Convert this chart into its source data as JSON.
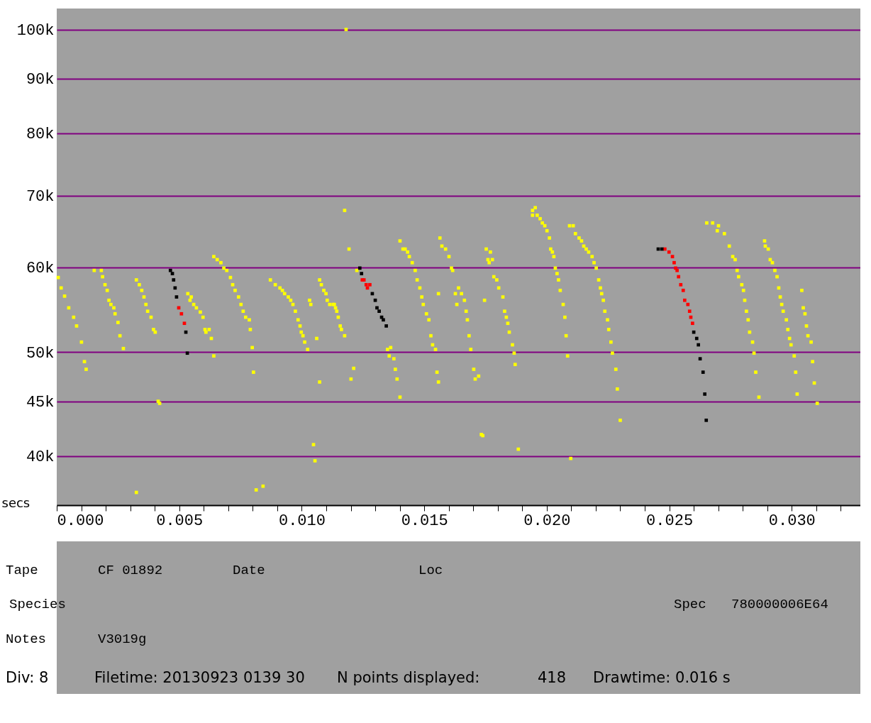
{
  "chart_data": {
    "type": "scatter",
    "xlabel": "secs",
    "marker": "square",
    "log": "y",
    "grid": "y",
    "xlim": [
      0,
      0.0328
    ],
    "ylim": [
      36000,
      104600
    ],
    "xticks": [
      {
        "value": 0,
        "label": "0.000"
      },
      {
        "value": 0.001,
        "label": null
      },
      {
        "value": 0.002,
        "label": null
      },
      {
        "value": 0.003,
        "label": null
      },
      {
        "value": 0.004,
        "label": null
      },
      {
        "value": 0.005,
        "label": "0.005"
      },
      {
        "value": 0.006,
        "label": null
      },
      {
        "value": 0.007,
        "label": null
      },
      {
        "value": 0.008,
        "label": null
      },
      {
        "value": 0.009,
        "label": null
      },
      {
        "value": 0.01,
        "label": "0.010"
      },
      {
        "value": 0.011,
        "label": null
      },
      {
        "value": 0.012,
        "label": null
      },
      {
        "value": 0.013,
        "label": null
      },
      {
        "value": 0.014,
        "label": null
      },
      {
        "value": 0.015,
        "label": "0.015"
      },
      {
        "value": 0.016,
        "label": null
      },
      {
        "value": 0.017,
        "label": null
      },
      {
        "value": 0.018,
        "label": null
      },
      {
        "value": 0.019,
        "label": null
      },
      {
        "value": 0.02,
        "label": "0.020"
      },
      {
        "value": 0.021,
        "label": null
      },
      {
        "value": 0.022,
        "label": null
      },
      {
        "value": 0.023,
        "label": null
      },
      {
        "value": 0.024,
        "label": null
      },
      {
        "value": 0.025,
        "label": "0.025"
      },
      {
        "value": 0.026,
        "label": null
      },
      {
        "value": 0.027,
        "label": null
      },
      {
        "value": 0.028,
        "label": null
      },
      {
        "value": 0.029,
        "label": null
      },
      {
        "value": 0.03,
        "label": "0.030"
      },
      {
        "value": 0.031,
        "label": null
      },
      {
        "value": 0.032,
        "label": null
      }
    ],
    "yticks": [
      {
        "value": 40000,
        "label": "40k"
      },
      {
        "value": 45000,
        "label": "45k"
      },
      {
        "value": 50000,
        "label": "50k"
      },
      {
        "value": 60000,
        "label": "60k"
      },
      {
        "value": 70000,
        "label": "70k"
      },
      {
        "value": 80000,
        "label": "80k"
      },
      {
        "value": 90000,
        "label": "90k"
      },
      {
        "value": 100000,
        "label": "100k"
      }
    ],
    "annotations": [
      "Tape",
      "CF 01892",
      "Date",
      "Loc",
      "Species",
      "Spec",
      "780000006E64",
      "Notes",
      "V3019g",
      "Div: 8",
      "Filetime: 20130923 0139 30",
      "N points displayed:",
      "418",
      "Drawtime: 0.016 s"
    ],
    "series": [
      {
        "color": "#ffff00",
        "x": [
          6e-05,
          0.00018,
          0.00032,
          0.00049,
          0.00069,
          0.00081,
          0.00101,
          0.00113,
          0.0012,
          0.00153,
          0.00182,
          0.00187,
          0.00197,
          0.00206,
          0.00213,
          0.00221,
          0.00233,
          0.00238,
          0.0025,
          0.00258,
          0.00272,
          0.00325,
          0.00337,
          0.00347,
          0.00356,
          0.00364,
          0.00371,
          0.00385,
          0.00395,
          0.00402,
          0.00414,
          0.0042,
          0.00325,
          0.00535,
          0.00549,
          0.00544,
          0.00559,
          0.0057,
          0.00586,
          0.00597,
          0.00605,
          0.00609,
          0.00622,
          0.00631,
          0.00641,
          0.00641,
          0.00655,
          0.0067,
          0.00682,
          0.00694,
          0.00709,
          0.00718,
          0.00728,
          0.00742,
          0.00752,
          0.00761,
          0.00771,
          0.00786,
          0.0079,
          0.00798,
          0.00803,
          0.00814,
          0.00842,
          0.00872,
          0.00892,
          0.00911,
          0.00921,
          0.0093,
          0.00945,
          0.00955,
          0.00964,
          0.00974,
          0.00985,
          0.00993,
          0.00998,
          0.01005,
          0.01012,
          0.01024,
          0.01032,
          0.01037,
          0.01061,
          0.01073,
          0.01048,
          0.01054,
          0.01073,
          0.0108,
          0.0109,
          0.01099,
          0.01104,
          0.01114,
          0.01133,
          0.01128,
          0.01138,
          0.01143,
          0.01149,
          0.01157,
          0.01162,
          0.01175,
          0.01201,
          0.01212,
          0.01175,
          0.01181,
          0.01193,
          0.01225,
          0.0135,
          0.01363,
          0.01357,
          0.01376,
          0.01382,
          0.01389,
          0.01401,
          0.01401,
          0.01413,
          0.01422,
          0.01432,
          0.01439,
          0.01451,
          0.01463,
          0.01471,
          0.01482,
          0.0149,
          0.01496,
          0.01509,
          0.01519,
          0.01527,
          0.01534,
          0.01546,
          0.01552,
          0.01558,
          0.01558,
          0.01564,
          0.01572,
          0.01587,
          0.01601,
          0.01611,
          0.01616,
          0.01627,
          0.0164,
          0.01652,
          0.01664,
          0.01671,
          0.01676,
          0.01683,
          0.0169,
          0.01702,
          0.01708,
          0.01722,
          0.01633,
          0.01746,
          0.01733,
          0.01739,
          0.01753,
          0.0177,
          0.0176,
          0.01765,
          0.01778,
          0.01784,
          0.01796,
          0.01804,
          0.01821,
          0.01828,
          0.01835,
          0.01841,
          0.01847,
          0.0186,
          0.01867,
          0.01871,
          0.01884,
          0.01942,
          0.01953,
          0.01942,
          0.01961,
          0.01973,
          0.01982,
          0.01992,
          0.02001,
          0.02011,
          0.02016,
          0.02023,
          0.02029,
          0.02035,
          0.02042,
          0.02048,
          0.02055,
          0.02067,
          0.02074,
          0.02079,
          0.02085,
          0.02098,
          0.02093,
          0.02108,
          0.02117,
          0.02132,
          0.02142,
          0.02151,
          0.02161,
          0.02171,
          0.02185,
          0.02193,
          0.02202,
          0.02212,
          0.02219,
          0.02224,
          0.02231,
          0.02237,
          0.02248,
          0.02253,
          0.02262,
          0.02268,
          0.02282,
          0.02288,
          0.023,
          0.02653,
          0.02677,
          0.02701,
          0.02696,
          0.02725,
          0.02745,
          0.02759,
          0.02769,
          0.02777,
          0.02783,
          0.02796,
          0.02803,
          0.02808,
          0.02815,
          0.02822,
          0.02828,
          0.0284,
          0.02846,
          0.02853,
          0.02866,
          0.02889,
          0.02892,
          0.02904,
          0.02912,
          0.02921,
          0.02931,
          0.0294,
          0.02947,
          0.02953,
          0.02959,
          0.02965,
          0.02978,
          0.02984,
          0.02991,
          0.02997,
          0.0301,
          0.03016,
          0.03022,
          0.03041,
          0.03047,
          0.03054,
          0.0306,
          0.03066,
          0.03079,
          0.03085,
          0.03092,
          0.03104
        ],
        "values": [
          58700,
          57400,
          56400,
          55000,
          53900,
          52900,
          51100,
          49000,
          48200,
          59600,
          59600,
          58800,
          57800,
          57100,
          55900,
          55400,
          55000,
          54300,
          53300,
          51800,
          50400,
          58400,
          57800,
          57100,
          56300,
          55400,
          54600,
          53900,
          52500,
          52200,
          45000,
          44800,
          37000,
          56700,
          56300,
          55900,
          55400,
          55000,
          54500,
          53900,
          52500,
          52200,
          52500,
          51500,
          49600,
          61400,
          61000,
          60600,
          59900,
          59600,
          58700,
          57800,
          57100,
          56300,
          55400,
          54600,
          53900,
          53600,
          52500,
          50500,
          47900,
          37200,
          37500,
          58400,
          57800,
          57400,
          57100,
          56700,
          56300,
          55900,
          55400,
          54600,
          53600,
          52900,
          52200,
          51800,
          51100,
          50300,
          55900,
          55400,
          51500,
          46900,
          41000,
          39600,
          58400,
          57800,
          57100,
          56700,
          55900,
          55400,
          55400,
          55400,
          55000,
          54600,
          53900,
          52900,
          52500,
          51800,
          47200,
          48300,
          67800,
          100000,
          62400,
          59600,
          50300,
          50500,
          49600,
          49300,
          48200,
          47200,
          45400,
          63500,
          62400,
          62400,
          62000,
          61400,
          60600,
          59600,
          58400,
          57400,
          56300,
          55400,
          54300,
          53600,
          51800,
          50800,
          50300,
          47900,
          46900,
          56700,
          63900,
          62800,
          62400,
          61400,
          59900,
          59600,
          56700,
          57400,
          56700,
          55900,
          54600,
          53600,
          51800,
          50300,
          48200,
          47200,
          47500,
          55400,
          55900,
          41900,
          41800,
          62400,
          62000,
          61000,
          60600,
          61000,
          58800,
          58400,
          57400,
          56300,
          54600,
          53900,
          53200,
          52200,
          50800,
          49900,
          48700,
          40600,
          67800,
          68200,
          67100,
          67100,
          66600,
          66000,
          65600,
          64900,
          63900,
          62400,
          62000,
          61400,
          59900,
          59200,
          58400,
          57100,
          55400,
          53900,
          51800,
          49600,
          39800,
          65600,
          65600,
          64500,
          63900,
          63500,
          62800,
          62400,
          62000,
          61400,
          60600,
          59900,
          58400,
          57400,
          56700,
          55900,
          54600,
          53600,
          52500,
          51100,
          49900,
          48200,
          46200,
          43200,
          66000,
          66000,
          65600,
          64900,
          64500,
          62800,
          61400,
          61000,
          59600,
          58800,
          57800,
          57100,
          55900,
          54600,
          53600,
          52200,
          51100,
          49900,
          47900,
          45400,
          63500,
          62800,
          62400,
          61000,
          60600,
          59600,
          58800,
          57400,
          56300,
          55400,
          54600,
          53600,
          52500,
          51500,
          50800,
          49600,
          47900,
          45700,
          57100,
          55000,
          54300,
          52900,
          51800,
          51100,
          49000,
          46800,
          44800
        ]
      },
      {
        "color": "#ff0000",
        "x": [
          0.00498,
          0.00509,
          0.00521,
          0.01247,
          0.01254,
          0.01263,
          0.01278,
          0.01268,
          0.02482,
          0.02499,
          0.02513,
          0.0252,
          0.02526,
          0.02532,
          0.02538,
          0.02547,
          0.02557,
          0.02563,
          0.02576,
          0.02583,
          0.02588,
          0.02595
        ],
        "values": [
          55000,
          54300,
          53200,
          58400,
          58400,
          57800,
          57800,
          57400,
          62400,
          62000,
          61400,
          60600,
          59900,
          59600,
          58800,
          57800,
          57100,
          55900,
          55400,
          54600,
          53900,
          53200
        ]
      },
      {
        "color": "#000000",
        "x": [
          0.00464,
          0.00472,
          0.00477,
          0.00483,
          0.00489,
          0.00527,
          0.00533,
          0.01237,
          0.01244,
          0.01288,
          0.013,
          0.01307,
          0.01316,
          0.01326,
          0.01333,
          0.01345,
          0.02455,
          0.0247,
          0.026,
          0.02612,
          0.02619,
          0.02626,
          0.02638,
          0.02645,
          0.02651
        ],
        "values": [
          59600,
          59200,
          58400,
          57400,
          56300,
          52200,
          49900,
          59900,
          59200,
          56700,
          55900,
          55000,
          54600,
          53900,
          53600,
          52900,
          62400,
          62400,
          52200,
          51500,
          50800,
          49300,
          47900,
          45700,
          43200
        ]
      }
    ]
  }
}
